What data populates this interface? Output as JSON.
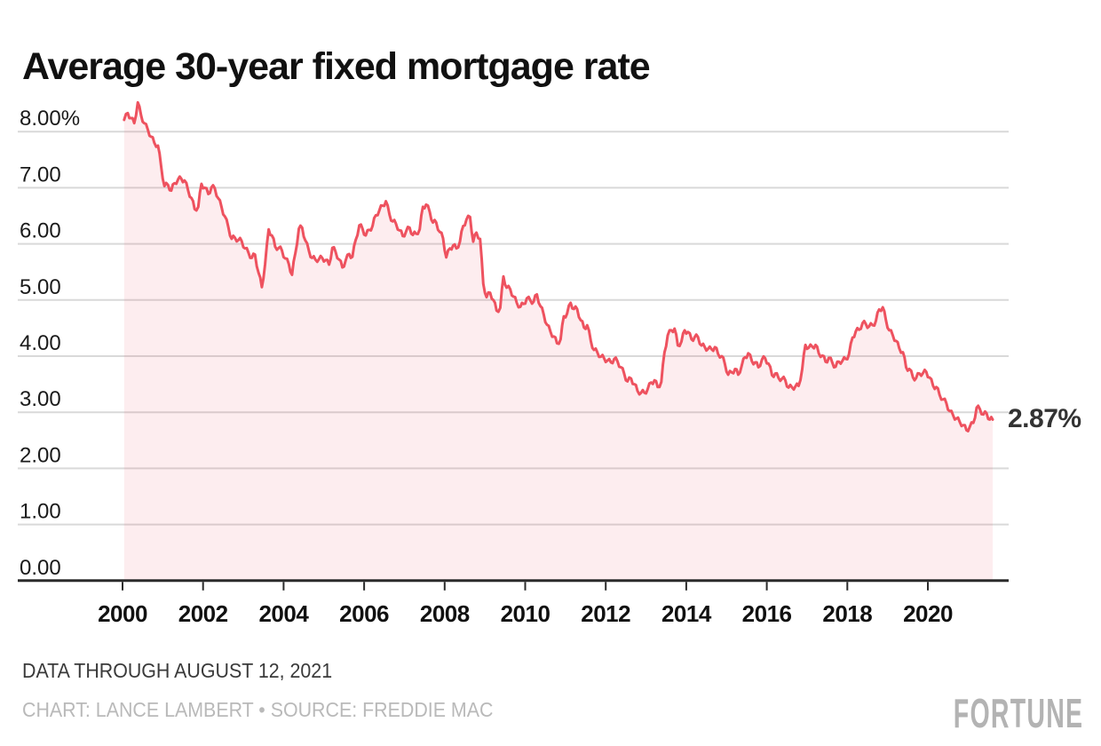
{
  "chart": {
    "title": "Average 30-year fixed mortgage rate",
    "annotation": {
      "label": "2.87%",
      "value": 2.87
    }
  },
  "footer": {
    "note": "DATA THROUGH AUGUST 12, 2021",
    "byline": "CHART: LANCE LAMBERT • SOURCE: FREDDIE MAC",
    "logo": "FORTUNE"
  },
  "colors": {
    "line": "#ee525f",
    "fill": "#ee525f",
    "fill_opacity": "0.1",
    "grid": "#d9d9d9",
    "axis": "#2b2b2b",
    "title": "#111111",
    "annotation": "#333333",
    "note": "#3a3a3a",
    "byline": "#b9b9b9",
    "logo": "#b3b3b3"
  },
  "chart_data": {
    "type": "area",
    "title": "Average 30-year fixed mortgage rate",
    "unit": "percent",
    "grid": true,
    "legend": "none",
    "xlim": [
      2000,
      2021.62
    ],
    "ylim": [
      0,
      8.64
    ],
    "x_ticks": [
      "2000",
      "2002",
      "2004",
      "2006",
      "2008",
      "2010",
      "2012",
      "2014",
      "2016",
      "2018",
      "2020"
    ],
    "y_ticks": [
      {
        "label": "8.00%",
        "value": 8
      },
      {
        "label": "7.00",
        "value": 7
      },
      {
        "label": "6.00",
        "value": 6
      },
      {
        "label": "5.00",
        "value": 5
      },
      {
        "label": "4.00",
        "value": 4
      },
      {
        "label": "3.00",
        "value": 3
      },
      {
        "label": "2.00",
        "value": 2
      },
      {
        "label": "1.00",
        "value": 1
      },
      {
        "label": "0.00",
        "value": 0
      }
    ],
    "series": [
      {
        "name": "Average 30-year fixed mortgage rate",
        "points": [
          [
            2000.04,
            8.21
          ],
          [
            2000.13,
            8.33
          ],
          [
            2000.21,
            8.24
          ],
          [
            2000.29,
            8.15
          ],
          [
            2000.38,
            8.52
          ],
          [
            2000.46,
            8.29
          ],
          [
            2000.54,
            8.15
          ],
          [
            2000.63,
            8.03
          ],
          [
            2000.71,
            7.91
          ],
          [
            2000.79,
            7.8
          ],
          [
            2000.88,
            7.75
          ],
          [
            2000.96,
            7.38
          ],
          [
            2001.04,
            7.03
          ],
          [
            2001.13,
            7.05
          ],
          [
            2001.21,
            6.95
          ],
          [
            2001.29,
            7.08
          ],
          [
            2001.38,
            7.15
          ],
          [
            2001.46,
            7.16
          ],
          [
            2001.54,
            7.13
          ],
          [
            2001.63,
            6.95
          ],
          [
            2001.71,
            6.82
          ],
          [
            2001.79,
            6.62
          ],
          [
            2001.88,
            6.66
          ],
          [
            2001.96,
            7.07
          ],
          [
            2002.04,
            7.0
          ],
          [
            2002.13,
            6.89
          ],
          [
            2002.21,
            7.01
          ],
          [
            2002.29,
            6.99
          ],
          [
            2002.38,
            6.81
          ],
          [
            2002.46,
            6.65
          ],
          [
            2002.54,
            6.49
          ],
          [
            2002.63,
            6.29
          ],
          [
            2002.71,
            6.09
          ],
          [
            2002.79,
            6.11
          ],
          [
            2002.88,
            6.07
          ],
          [
            2002.96,
            6.05
          ],
          [
            2003.04,
            5.92
          ],
          [
            2003.13,
            5.84
          ],
          [
            2003.21,
            5.75
          ],
          [
            2003.29,
            5.81
          ],
          [
            2003.38,
            5.48
          ],
          [
            2003.46,
            5.23
          ],
          [
            2003.54,
            5.63
          ],
          [
            2003.63,
            6.26
          ],
          [
            2003.71,
            6.15
          ],
          [
            2003.79,
            5.95
          ],
          [
            2003.88,
            5.93
          ],
          [
            2003.96,
            5.88
          ],
          [
            2004.04,
            5.74
          ],
          [
            2004.13,
            5.64
          ],
          [
            2004.21,
            5.45
          ],
          [
            2004.29,
            5.83
          ],
          [
            2004.38,
            6.27
          ],
          [
            2004.46,
            6.29
          ],
          [
            2004.54,
            6.06
          ],
          [
            2004.63,
            5.87
          ],
          [
            2004.71,
            5.75
          ],
          [
            2004.79,
            5.72
          ],
          [
            2004.88,
            5.73
          ],
          [
            2004.96,
            5.75
          ],
          [
            2005.04,
            5.71
          ],
          [
            2005.13,
            5.63
          ],
          [
            2005.21,
            5.93
          ],
          [
            2005.29,
            5.86
          ],
          [
            2005.38,
            5.72
          ],
          [
            2005.46,
            5.58
          ],
          [
            2005.54,
            5.7
          ],
          [
            2005.63,
            5.82
          ],
          [
            2005.71,
            5.77
          ],
          [
            2005.79,
            6.07
          ],
          [
            2005.88,
            6.33
          ],
          [
            2005.96,
            6.27
          ],
          [
            2006.04,
            6.15
          ],
          [
            2006.13,
            6.25
          ],
          [
            2006.21,
            6.32
          ],
          [
            2006.29,
            6.51
          ],
          [
            2006.38,
            6.6
          ],
          [
            2006.46,
            6.68
          ],
          [
            2006.54,
            6.76
          ],
          [
            2006.63,
            6.52
          ],
          [
            2006.71,
            6.4
          ],
          [
            2006.79,
            6.36
          ],
          [
            2006.88,
            6.24
          ],
          [
            2006.96,
            6.14
          ],
          [
            2007.04,
            6.22
          ],
          [
            2007.13,
            6.29
          ],
          [
            2007.21,
            6.16
          ],
          [
            2007.29,
            6.18
          ],
          [
            2007.38,
            6.26
          ],
          [
            2007.46,
            6.66
          ],
          [
            2007.54,
            6.7
          ],
          [
            2007.63,
            6.57
          ],
          [
            2007.71,
            6.38
          ],
          [
            2007.79,
            6.38
          ],
          [
            2007.88,
            6.21
          ],
          [
            2007.96,
            6.1
          ],
          [
            2008.04,
            5.76
          ],
          [
            2008.13,
            5.92
          ],
          [
            2008.21,
            5.97
          ],
          [
            2008.29,
            5.92
          ],
          [
            2008.38,
            6.04
          ],
          [
            2008.46,
            6.32
          ],
          [
            2008.54,
            6.43
          ],
          [
            2008.63,
            6.48
          ],
          [
            2008.71,
            6.04
          ],
          [
            2008.79,
            6.2
          ],
          [
            2008.88,
            6.09
          ],
          [
            2008.96,
            5.29
          ],
          [
            2009.04,
            5.05
          ],
          [
            2009.13,
            5.13
          ],
          [
            2009.21,
            5.0
          ],
          [
            2009.29,
            4.81
          ],
          [
            2009.38,
            4.86
          ],
          [
            2009.46,
            5.42
          ],
          [
            2009.54,
            5.22
          ],
          [
            2009.63,
            5.19
          ],
          [
            2009.71,
            5.06
          ],
          [
            2009.79,
            4.95
          ],
          [
            2009.88,
            4.88
          ],
          [
            2009.96,
            4.93
          ],
          [
            2010.04,
            5.03
          ],
          [
            2010.13,
            4.99
          ],
          [
            2010.21,
            4.97
          ],
          [
            2010.29,
            5.1
          ],
          [
            2010.38,
            4.89
          ],
          [
            2010.46,
            4.74
          ],
          [
            2010.54,
            4.56
          ],
          [
            2010.63,
            4.43
          ],
          [
            2010.71,
            4.35
          ],
          [
            2010.79,
            4.23
          ],
          [
            2010.88,
            4.3
          ],
          [
            2010.96,
            4.71
          ],
          [
            2011.04,
            4.76
          ],
          [
            2011.13,
            4.95
          ],
          [
            2011.21,
            4.84
          ],
          [
            2011.29,
            4.84
          ],
          [
            2011.38,
            4.64
          ],
          [
            2011.46,
            4.51
          ],
          [
            2011.54,
            4.55
          ],
          [
            2011.63,
            4.27
          ],
          [
            2011.71,
            4.11
          ],
          [
            2011.79,
            4.07
          ],
          [
            2011.88,
            3.99
          ],
          [
            2011.96,
            3.96
          ],
          [
            2012.04,
            3.92
          ],
          [
            2012.13,
            3.89
          ],
          [
            2012.21,
            3.95
          ],
          [
            2012.29,
            3.91
          ],
          [
            2012.38,
            3.8
          ],
          [
            2012.46,
            3.68
          ],
          [
            2012.54,
            3.55
          ],
          [
            2012.63,
            3.6
          ],
          [
            2012.71,
            3.5
          ],
          [
            2012.79,
            3.38
          ],
          [
            2012.88,
            3.35
          ],
          [
            2012.96,
            3.35
          ],
          [
            2013.04,
            3.41
          ],
          [
            2013.13,
            3.53
          ],
          [
            2013.21,
            3.57
          ],
          [
            2013.29,
            3.45
          ],
          [
            2013.38,
            3.54
          ],
          [
            2013.46,
            4.07
          ],
          [
            2013.54,
            4.37
          ],
          [
            2013.63,
            4.46
          ],
          [
            2013.71,
            4.49
          ],
          [
            2013.79,
            4.19
          ],
          [
            2013.88,
            4.26
          ],
          [
            2013.96,
            4.46
          ],
          [
            2014.04,
            4.43
          ],
          [
            2014.13,
            4.3
          ],
          [
            2014.21,
            4.34
          ],
          [
            2014.29,
            4.34
          ],
          [
            2014.38,
            4.19
          ],
          [
            2014.46,
            4.16
          ],
          [
            2014.54,
            4.13
          ],
          [
            2014.63,
            4.12
          ],
          [
            2014.71,
            4.16
          ],
          [
            2014.79,
            4.04
          ],
          [
            2014.88,
            4.0
          ],
          [
            2014.96,
            3.86
          ],
          [
            2015.04,
            3.67
          ],
          [
            2015.13,
            3.71
          ],
          [
            2015.21,
            3.77
          ],
          [
            2015.29,
            3.67
          ],
          [
            2015.38,
            3.84
          ],
          [
            2015.46,
            3.98
          ],
          [
            2015.54,
            4.05
          ],
          [
            2015.63,
            3.91
          ],
          [
            2015.71,
            3.89
          ],
          [
            2015.79,
            3.8
          ],
          [
            2015.88,
            3.94
          ],
          [
            2015.96,
            3.96
          ],
          [
            2016.04,
            3.87
          ],
          [
            2016.13,
            3.66
          ],
          [
            2016.21,
            3.69
          ],
          [
            2016.29,
            3.61
          ],
          [
            2016.38,
            3.6
          ],
          [
            2016.46,
            3.57
          ],
          [
            2016.54,
            3.44
          ],
          [
            2016.63,
            3.44
          ],
          [
            2016.71,
            3.46
          ],
          [
            2016.79,
            3.47
          ],
          [
            2016.88,
            3.77
          ],
          [
            2016.96,
            4.2
          ],
          [
            2017.04,
            4.15
          ],
          [
            2017.13,
            4.17
          ],
          [
            2017.21,
            4.2
          ],
          [
            2017.29,
            4.05
          ],
          [
            2017.38,
            4.01
          ],
          [
            2017.46,
            3.9
          ],
          [
            2017.54,
            3.97
          ],
          [
            2017.63,
            3.88
          ],
          [
            2017.71,
            3.81
          ],
          [
            2017.79,
            3.9
          ],
          [
            2017.88,
            3.92
          ],
          [
            2017.96,
            3.95
          ],
          [
            2018.04,
            4.03
          ],
          [
            2018.13,
            4.33
          ],
          [
            2018.21,
            4.44
          ],
          [
            2018.29,
            4.47
          ],
          [
            2018.38,
            4.59
          ],
          [
            2018.46,
            4.57
          ],
          [
            2018.54,
            4.53
          ],
          [
            2018.63,
            4.55
          ],
          [
            2018.71,
            4.63
          ],
          [
            2018.79,
            4.83
          ],
          [
            2018.88,
            4.87
          ],
          [
            2018.96,
            4.64
          ],
          [
            2019.04,
            4.46
          ],
          [
            2019.13,
            4.37
          ],
          [
            2019.21,
            4.27
          ],
          [
            2019.29,
            4.14
          ],
          [
            2019.38,
            4.07
          ],
          [
            2019.46,
            3.8
          ],
          [
            2019.54,
            3.77
          ],
          [
            2019.63,
            3.62
          ],
          [
            2019.71,
            3.61
          ],
          [
            2019.79,
            3.69
          ],
          [
            2019.88,
            3.7
          ],
          [
            2019.96,
            3.72
          ],
          [
            2020.04,
            3.62
          ],
          [
            2020.13,
            3.47
          ],
          [
            2020.21,
            3.45
          ],
          [
            2020.29,
            3.31
          ],
          [
            2020.38,
            3.23
          ],
          [
            2020.46,
            3.16
          ],
          [
            2020.54,
            3.02
          ],
          [
            2020.63,
            2.94
          ],
          [
            2020.71,
            2.89
          ],
          [
            2020.79,
            2.83
          ],
          [
            2020.88,
            2.77
          ],
          [
            2020.96,
            2.68
          ],
          [
            2021.04,
            2.74
          ],
          [
            2021.13,
            2.81
          ],
          [
            2021.21,
            3.08
          ],
          [
            2021.29,
            3.06
          ],
          [
            2021.38,
            2.96
          ],
          [
            2021.46,
            2.98
          ],
          [
            2021.54,
            2.87
          ],
          [
            2021.61,
            2.87
          ]
        ]
      }
    ]
  }
}
